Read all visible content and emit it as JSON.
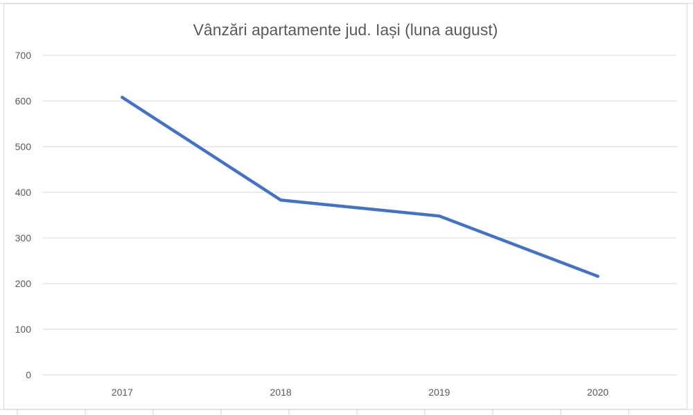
{
  "chart_data": {
    "type": "line",
    "title": "Vânzări apartamente jud. Iași (luna august)",
    "xlabel": "",
    "ylabel": "",
    "categories": [
      "2017",
      "2018",
      "2019",
      "2020"
    ],
    "series": [
      {
        "values": [
          608,
          383,
          348,
          216
        ],
        "color": "#4472c4"
      }
    ],
    "ylim": [
      0,
      700
    ],
    "yticks": [
      "0",
      "100",
      "200",
      "300",
      "400",
      "500",
      "600",
      "700"
    ],
    "grid": true,
    "legend": "none"
  }
}
